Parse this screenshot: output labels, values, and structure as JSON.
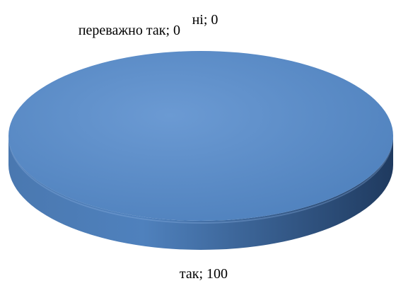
{
  "chart_data": {
    "type": "pie",
    "style": "3d",
    "title": "",
    "legend": "none",
    "slices": [
      {
        "category": "так",
        "value": 100,
        "label": "так; 100"
      },
      {
        "category": "ні",
        "value": 0,
        "label": "ні; 0"
      },
      {
        "category": "переважно так",
        "value": 0,
        "label": "переважно так; 0"
      }
    ],
    "colors": {
      "top": "#4f81bd",
      "top_highlight": "#6b9ad3",
      "side_light": "#4a78b0",
      "side_dark": "#1f3a5f"
    }
  }
}
